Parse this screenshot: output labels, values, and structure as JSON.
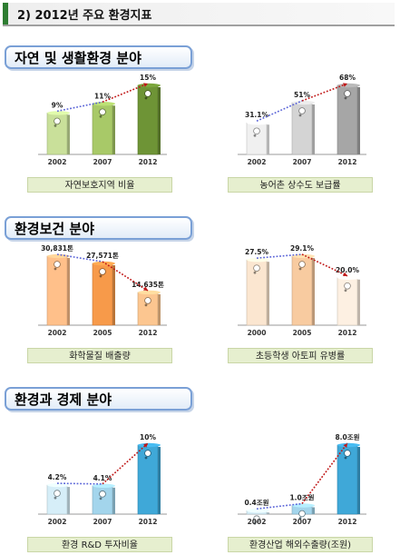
{
  "header": {
    "title": "2) 2012년 주요 환경지표"
  },
  "sections": [
    {
      "title": "자연 및 생활환경 분야"
    },
    {
      "title": "환경보건 분야"
    },
    {
      "title": "환경과 경제 분야"
    }
  ],
  "colors": {
    "green": [
      "#c9e09a",
      "#a8c968",
      "#6e9436"
    ],
    "gray": [
      "#f0f0f0",
      "#d4d4d4",
      "#a6a6a6"
    ],
    "orange": [
      "#ffc08a",
      "#f79a4a",
      "#fcc690"
    ],
    "peach": [
      "#fbe6d0",
      "#f8cba0",
      "#fdf0e2"
    ],
    "blue": [
      "#d6eef8",
      "#a3d5ec",
      "#3fa8d8"
    ],
    "trend_low": "#5a64d8",
    "trend_high": "#c01818"
  },
  "chart_data": [
    {
      "type": "bar",
      "categories": [
        "2002",
        "2007",
        "2012"
      ],
      "values": [
        9,
        11,
        15
      ],
      "labels": [
        "9%",
        "11%",
        "15%"
      ],
      "caption": "자연보호지역 비율",
      "palette": "green",
      "icon": "leaf-icon"
    },
    {
      "type": "bar",
      "categories": [
        "2002",
        "2007",
        "2012"
      ],
      "values": [
        31.1,
        51,
        68
      ],
      "labels": [
        "31.1%",
        "51%",
        "68%"
      ],
      "caption": "농어촌 상수도 보급률",
      "palette": "gray",
      "icon": "faucet-icon"
    },
    {
      "type": "bar",
      "categories": [
        "2002",
        "2005",
        "2012"
      ],
      "values": [
        30831,
        27571,
        14635
      ],
      "labels": [
        "30,831톤",
        "27,571톤",
        "14,635톤"
      ],
      "caption": "화학물질 배출량",
      "palette": "orange",
      "icon": "chemical-icon"
    },
    {
      "type": "bar",
      "categories": [
        "2000",
        "2005",
        "2012"
      ],
      "values": [
        27.5,
        29.1,
        20
      ],
      "labels": [
        "27.5%",
        "29.1%",
        "20.0%"
      ],
      "caption": "초등학생 아토피 유병률",
      "palette": "peach",
      "icon": "child-icon"
    },
    {
      "type": "bar",
      "categories": [
        "2002",
        "2007",
        "2012"
      ],
      "values": [
        4.2,
        4.1,
        10
      ],
      "labels": [
        "4.2%",
        "4.1%",
        "10%"
      ],
      "caption": "환경 R&D 투자비율",
      "palette": "blue",
      "icon": "coins-icon"
    },
    {
      "type": "bar",
      "categories": [
        "2002",
        "2007",
        "2012"
      ],
      "values": [
        0.4,
        1,
        8
      ],
      "labels": [
        "0.4조원",
        "1.0조원",
        "8.0조원"
      ],
      "caption": "환경산업 해외수출량(조원)",
      "palette": "blue",
      "icon": "globe-icon"
    }
  ]
}
